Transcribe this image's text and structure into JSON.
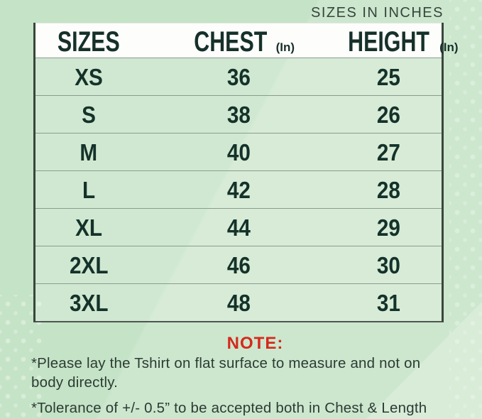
{
  "page": {
    "corner_label": "SIZES IN INCHES"
  },
  "size_chart": {
    "columns": [
      {
        "label": "SIZES",
        "unit": ""
      },
      {
        "label": "CHEST",
        "unit": "(In)"
      },
      {
        "label": "HEIGHT",
        "unit": "(In)"
      }
    ],
    "rows": [
      {
        "size": "XS",
        "chest": "36",
        "height": "25"
      },
      {
        "size": "S",
        "chest": "38",
        "height": "26"
      },
      {
        "size": "M",
        "chest": "40",
        "height": "27"
      },
      {
        "size": "L",
        "chest": "42",
        "height": "28"
      },
      {
        "size": "XL",
        "chest": "44",
        "height": "29"
      },
      {
        "size": "2XL",
        "chest": "46",
        "height": "30"
      },
      {
        "size": "3XL",
        "chest": "48",
        "height": "31"
      }
    ]
  },
  "note": {
    "title": "NOTE:",
    "line1": "*Please lay the Tshirt on flat surface to measure and not on",
    "line2": "body directly.",
    "line3": "*Tolerance of +/- 0.5” to be accepted both in Chest & Length"
  },
  "colors": {
    "background_green": "#c5e3c6",
    "header_white": "#fdfdfb",
    "text_dark_green": "#16302a",
    "note_red": "#d5291d",
    "border_dark": "#39463d"
  }
}
